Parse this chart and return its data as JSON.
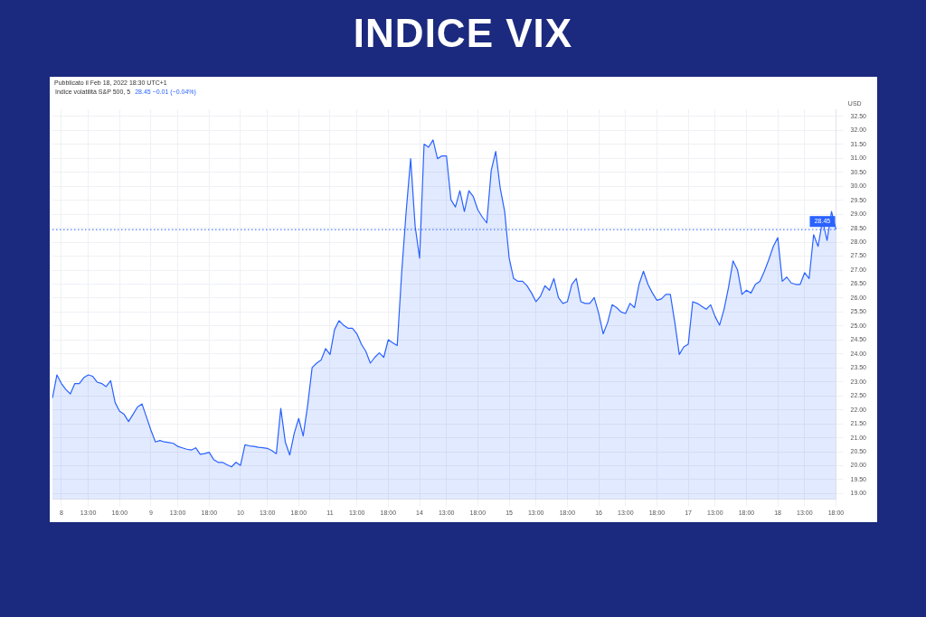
{
  "chart_data": {
    "type": "area",
    "title": "INDICE VIX",
    "subtitle": "Indice volatilità S&P 500, 5",
    "ylabel": "USD",
    "annotations": [
      "Pubblicato il Feb 18, 2022 18:30 UTC+1",
      "28.45 −0.01 (−0.04%)"
    ],
    "categories": [
      null,
      null,
      "8",
      null,
      null,
      null,
      null,
      null,
      "13:00",
      null,
      null,
      null,
      null,
      null,
      null,
      "16:00",
      null,
      null,
      null,
      null,
      null,
      null,
      "9",
      null,
      null,
      null,
      null,
      null,
      "13:00",
      null,
      null,
      null,
      null,
      null,
      null,
      "18:00",
      null,
      null,
      null,
      null,
      null,
      null,
      "10",
      null,
      null,
      null,
      null,
      null,
      "13:00",
      null,
      null,
      null,
      null,
      null,
      null,
      "18:00",
      null,
      null,
      null,
      null,
      null,
      null,
      "11",
      null,
      null,
      null,
      null,
      null,
      "13:00",
      null,
      null,
      null,
      null,
      null,
      null,
      "18:00",
      null,
      null,
      null,
      null,
      null,
      null,
      "14",
      null,
      null,
      null,
      null,
      null,
      "13:00",
      null,
      null,
      null,
      null,
      null,
      null,
      "18:00",
      null,
      null,
      null,
      null,
      null,
      null,
      "15",
      null,
      null,
      null,
      null,
      null,
      "13:00",
      null,
      null,
      null,
      null,
      null,
      null,
      "18:00",
      null,
      null,
      null,
      null,
      null,
      null,
      "16",
      null,
      null,
      null,
      null,
      null,
      "13:00",
      null,
      null,
      null,
      null,
      null,
      null,
      "18:00",
      null,
      null,
      null,
      null,
      null,
      null,
      "17",
      null,
      null,
      null,
      null,
      null,
      "13:00",
      null,
      null,
      null,
      null,
      null,
      null,
      "18:00",
      null,
      null,
      null,
      null,
      null,
      null,
      "18",
      null,
      null,
      null,
      null,
      null,
      "13:00",
      null,
      null,
      null,
      null,
      null,
      null,
      "18:00"
    ],
    "values": [
      22.42,
      23.25,
      22.94,
      22.73,
      22.57,
      22.94,
      22.94,
      23.15,
      23.25,
      23.2,
      22.99,
      22.94,
      22.83,
      23.04,
      22.26,
      21.95,
      21.84,
      21.58,
      21.84,
      22.1,
      22.21,
      21.74,
      21.27,
      20.85,
      20.9,
      20.85,
      20.83,
      20.8,
      20.69,
      20.64,
      20.59,
      20.56,
      20.64,
      20.41,
      20.43,
      20.48,
      20.22,
      20.12,
      20.12,
      20.03,
      19.96,
      20.12,
      20.01,
      20.75,
      20.71,
      20.69,
      20.66,
      20.64,
      20.62,
      20.54,
      20.43,
      22.05,
      20.85,
      20.38,
      21.16,
      21.69,
      21.06,
      22.16,
      23.51,
      23.67,
      23.78,
      24.19,
      23.98,
      24.87,
      25.19,
      25.03,
      24.92,
      24.92,
      24.72,
      24.35,
      24.09,
      23.67,
      23.88,
      24.04,
      23.88,
      24.51,
      24.4,
      24.3,
      26.91,
      29.1,
      30.99,
      28.58,
      27.43,
      31.51,
      31.4,
      31.66,
      30.99,
      31.09,
      31.09,
      29.52,
      29.26,
      29.84,
      29.1,
      29.84,
      29.63,
      29.16,
      28.9,
      28.69,
      30.57,
      31.25,
      29.94,
      29.1,
      27.43,
      26.7,
      26.6,
      26.6,
      26.44,
      26.18,
      25.87,
      26.07,
      26.44,
      26.28,
      26.7,
      26.02,
      25.81,
      25.87,
      26.49,
      26.7,
      25.87,
      25.81,
      25.81,
      26.02,
      25.45,
      24.72,
      25.13,
      25.76,
      25.66,
      25.5,
      25.45,
      25.81,
      25.66,
      26.49,
      26.96,
      26.49,
      26.18,
      25.92,
      25.97,
      26.13,
      26.13,
      25.13,
      23.98,
      24.25,
      24.35,
      25.87,
      25.81,
      25.71,
      25.6,
      25.76,
      25.34,
      25.03,
      25.6,
      26.39,
      27.33,
      27.01,
      26.13,
      26.28,
      26.18,
      26.49,
      26.6,
      26.96,
      27.38,
      27.85,
      28.16,
      26.6,
      26.75,
      26.54,
      26.49,
      26.49,
      26.91,
      26.7,
      28.27,
      27.85,
      28.79,
      28.06,
      29.1,
      28.45
    ],
    "color": "#2962ff",
    "ylim": [
      18.8,
      32.75
    ],
    "yticks": [
      {
        "value": 19,
        "label": "19.00"
      },
      {
        "value": 19.5,
        "label": "19.50"
      },
      {
        "value": 20,
        "label": "20.00"
      },
      {
        "value": 20.5,
        "label": "20.50"
      },
      {
        "value": 21,
        "label": "21.00"
      },
      {
        "value": 21.5,
        "label": "21.50"
      },
      {
        "value": 22,
        "label": "22.00"
      },
      {
        "value": 22.5,
        "label": "22.50"
      },
      {
        "value": 23,
        "label": "23.00"
      },
      {
        "value": 23.5,
        "label": "23.50"
      },
      {
        "value": 24,
        "label": "24.00"
      },
      {
        "value": 24.5,
        "label": "24.50"
      },
      {
        "value": 25,
        "label": "25.00"
      },
      {
        "value": 25.5,
        "label": "25.50"
      },
      {
        "value": 26,
        "label": "26.00"
      },
      {
        "value": 26.5,
        "label": "26.50"
      },
      {
        "value": 27,
        "label": "27.00"
      },
      {
        "value": 27.5,
        "label": "27.50"
      },
      {
        "value": 28,
        "label": "28.00"
      },
      {
        "value": 28.5,
        "label": "28.50"
      },
      {
        "value": 29,
        "label": "29.00"
      },
      {
        "value": 29.5,
        "label": "29.50"
      },
      {
        "value": 30,
        "label": "30.00"
      },
      {
        "value": 30.5,
        "label": "30.50"
      },
      {
        "value": 31,
        "label": "31.00"
      },
      {
        "value": 31.5,
        "label": "31.50"
      },
      {
        "value": 32,
        "label": "32.00"
      },
      {
        "value": 32.5,
        "label": "32.50"
      }
    ],
    "ref_lines": [
      {
        "axis": "y",
        "value": 28.45,
        "label": "28.45",
        "color": "#2962ff",
        "line_style": "dotted"
      }
    ],
    "grid": true,
    "legend": false,
    "marker": "none",
    "line_style": "solid"
  }
}
